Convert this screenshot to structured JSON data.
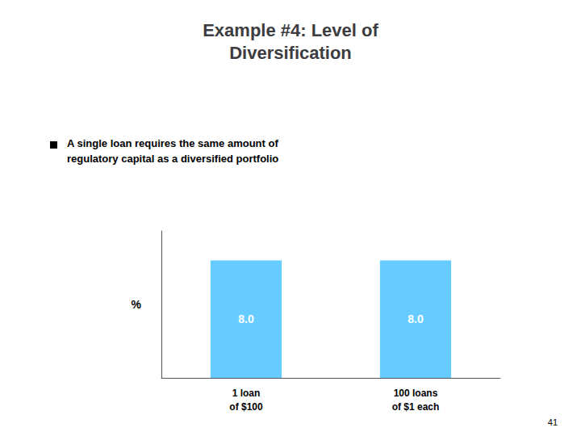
{
  "chart_data": {
    "type": "bar",
    "title": "Example #4: Level of\nDiversification",
    "annotations": [
      "A single loan requires the same amount of\nregulatory capital as a diversified portfolio",
      "41"
    ],
    "categories": [
      "1 loan\nof $100",
      "100 loans\nof $1 each"
    ],
    "values": [
      8.0,
      8.0
    ],
    "value_labels": [
      "8.0",
      "8.0"
    ],
    "color": "#66CCFF",
    "ylabel": "%",
    "ylim": [
      0,
      10
    ],
    "grid": false,
    "data_labels": true,
    "tick_labels": "x"
  }
}
